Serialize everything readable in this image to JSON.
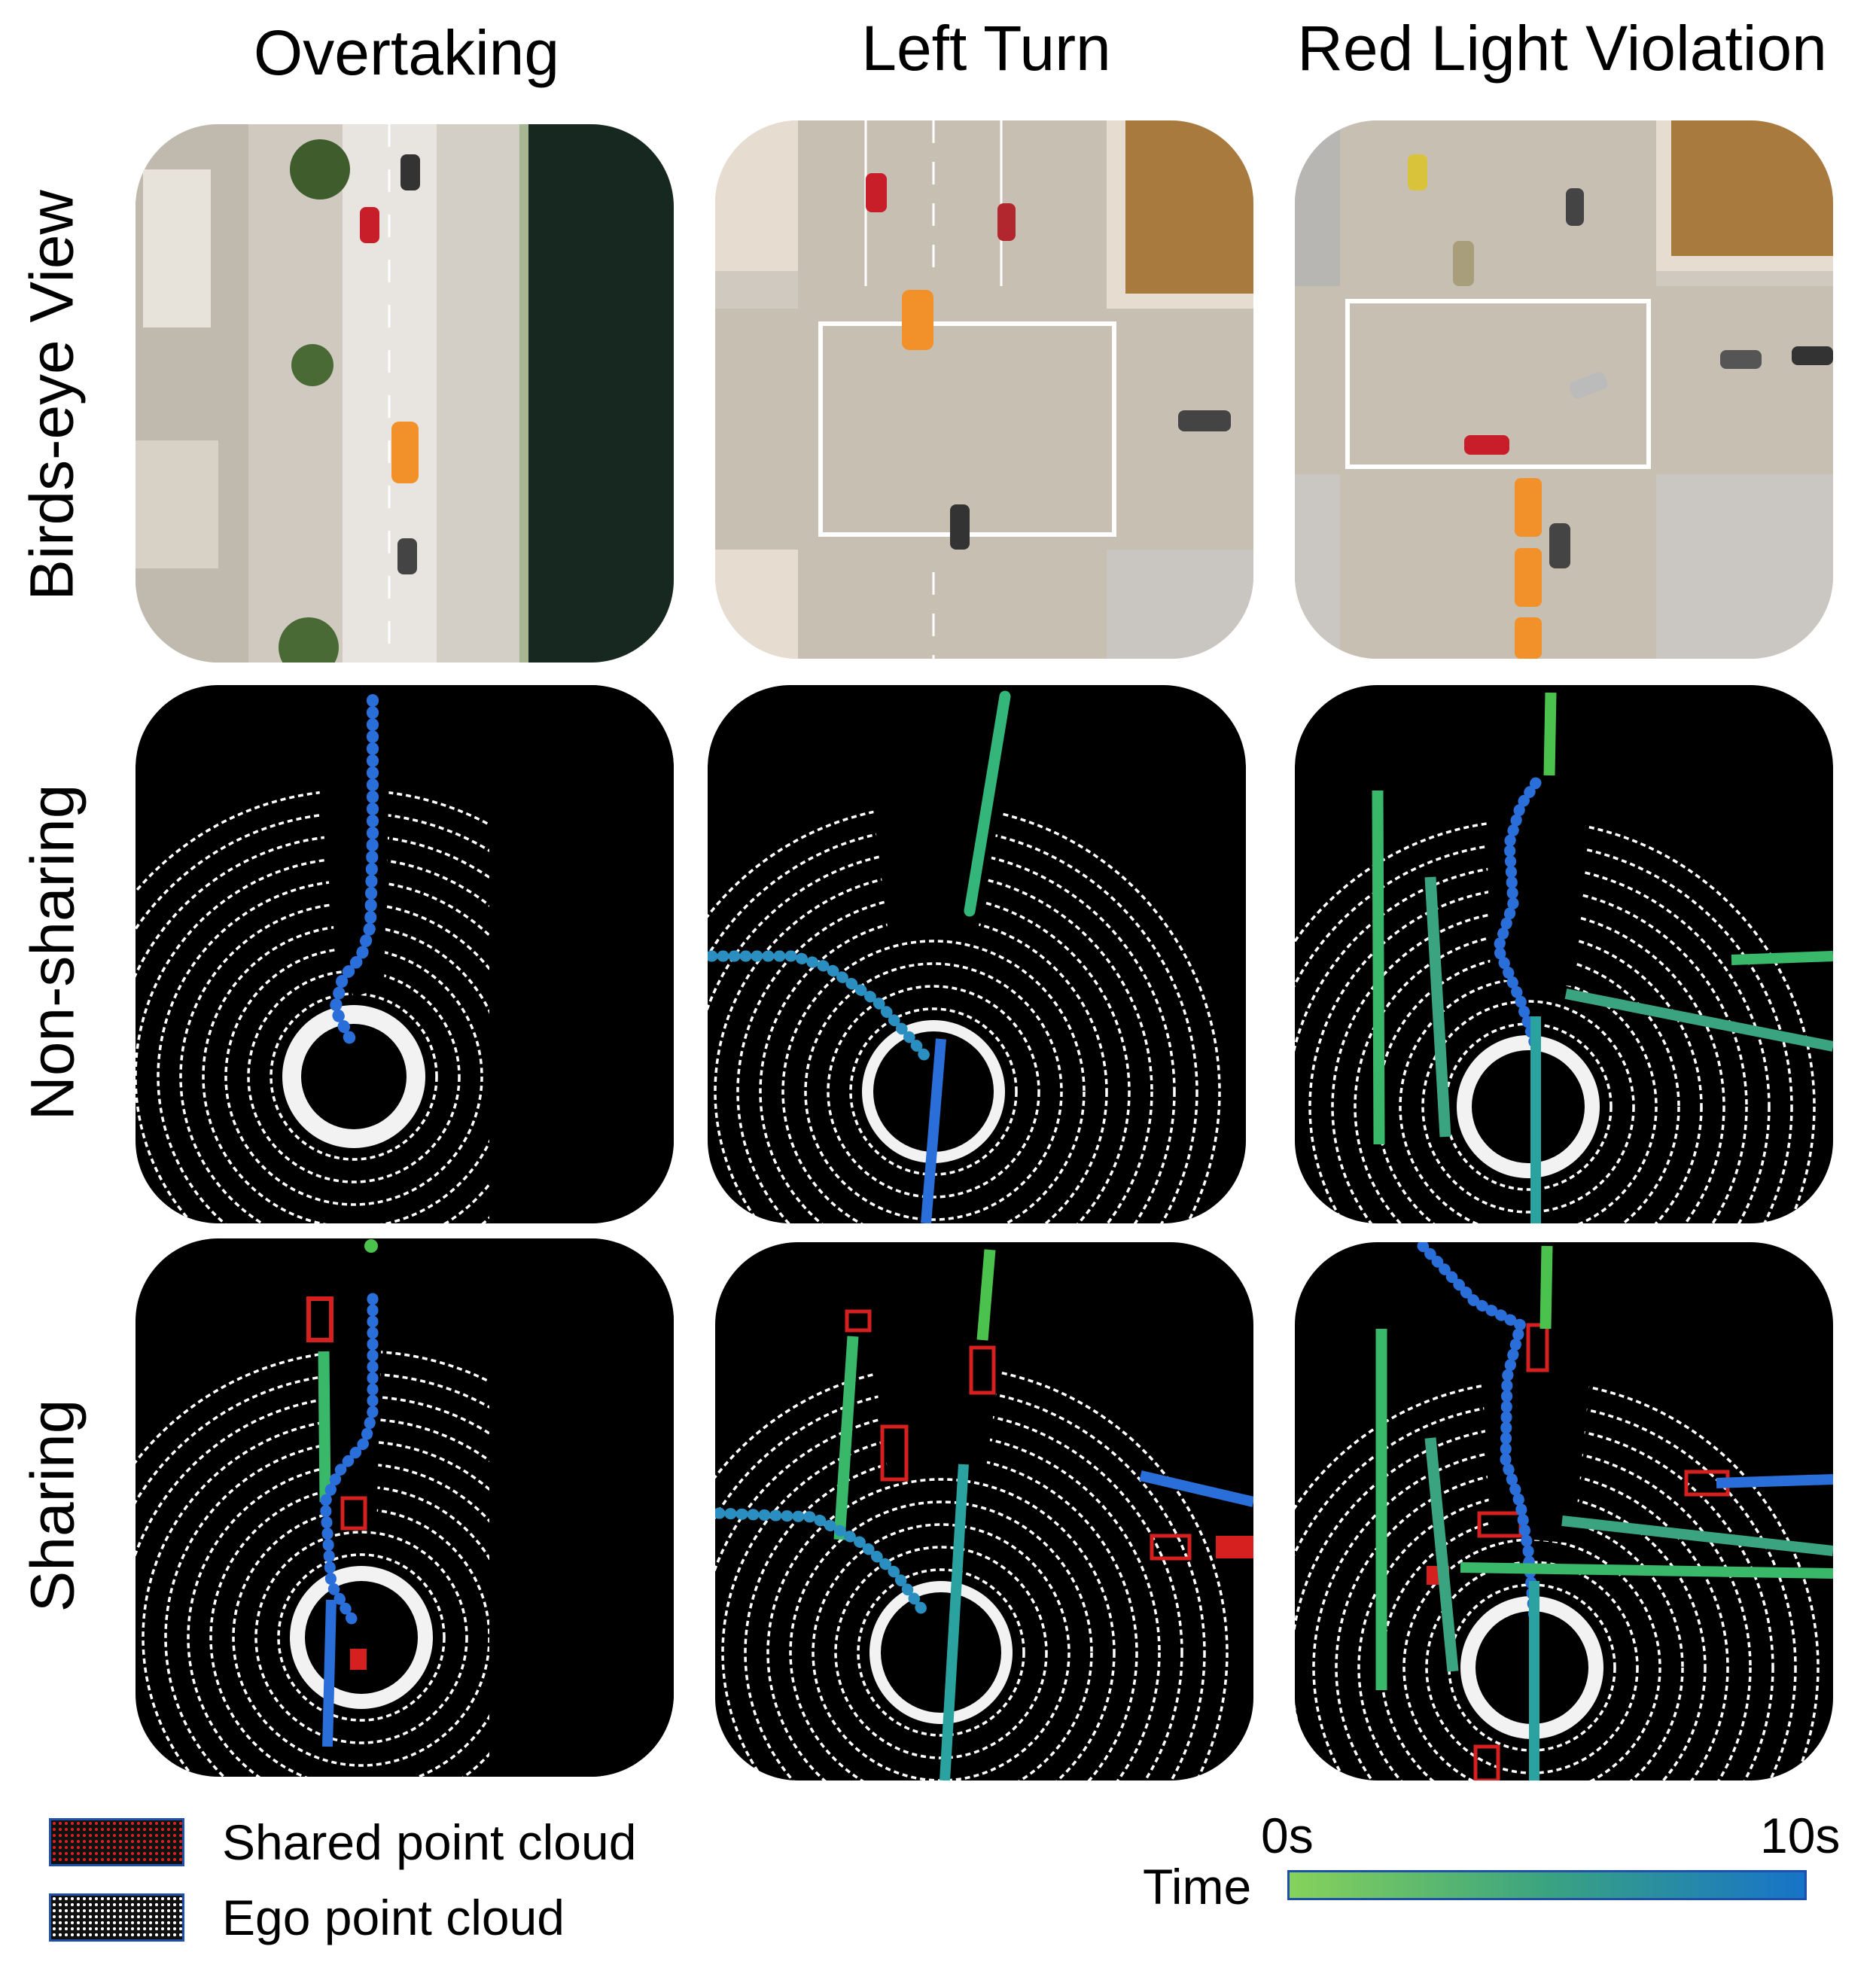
{
  "columns": [
    "Overtaking",
    "Left Turn",
    "Red Light Violation"
  ],
  "rows": [
    "Birds-eye View",
    "Non-sharing",
    "Sharing"
  ],
  "legend": {
    "shared": "Shared point cloud",
    "ego": "Ego point cloud"
  },
  "time_scale": {
    "label": "Time",
    "start": "0s",
    "end": "10s",
    "colors": [
      "#86d25a",
      "#3aa380",
      "#1673c9"
    ]
  },
  "colors": {
    "shared_point_cloud": "#d61f1f",
    "ego_point_cloud": "#ffffff",
    "ego_vehicle": "#f2902a"
  }
}
